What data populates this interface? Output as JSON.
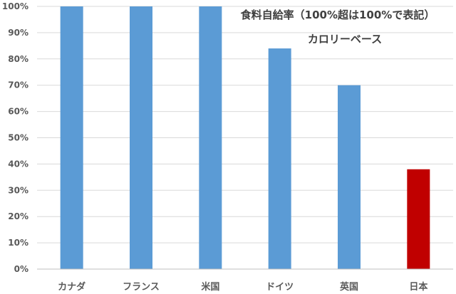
{
  "chart_data": {
    "type": "bar",
    "title": "食料自給率（100%超は100%で表記）",
    "subtitle": "カロリーベース",
    "categories": [
      "カナダ",
      "フランス",
      "米国",
      "ドイツ",
      "英国",
      "日本"
    ],
    "values": [
      100,
      100,
      100,
      84,
      70,
      38
    ],
    "value_unit": "%",
    "ylim": [
      0,
      100
    ],
    "yticks": [
      "0%",
      "10%",
      "20%",
      "30%",
      "40%",
      "50%",
      "60%",
      "70%",
      "80%",
      "90%",
      "100%"
    ],
    "xlabel": "",
    "ylabel": "",
    "grid": true,
    "legend": "none",
    "colors": {
      "default_bar": "#5B9BD5",
      "highlight_bar": "#C00000",
      "gridline": "#D9D9D9",
      "axis": "#BFBFBF"
    },
    "highlight_category": "日本"
  }
}
